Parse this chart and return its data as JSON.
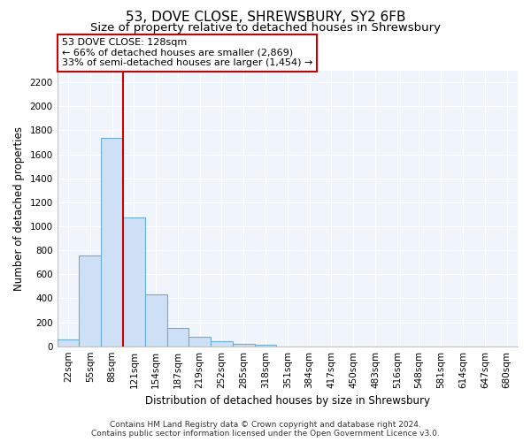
{
  "title": "53, DOVE CLOSE, SHREWSBURY, SY2 6FB",
  "subtitle": "Size of property relative to detached houses in Shrewsbury",
  "xlabel": "Distribution of detached houses by size in Shrewsbury",
  "ylabel": "Number of detached properties",
  "bar_labels": [
    "22sqm",
    "55sqm",
    "88sqm",
    "121sqm",
    "154sqm",
    "187sqm",
    "219sqm",
    "252sqm",
    "285sqm",
    "318sqm",
    "351sqm",
    "384sqm",
    "417sqm",
    "450sqm",
    "483sqm",
    "516sqm",
    "548sqm",
    "581sqm",
    "614sqm",
    "647sqm",
    "680sqm"
  ],
  "bar_values": [
    57,
    760,
    1740,
    1075,
    430,
    155,
    80,
    42,
    22,
    15,
    0,
    0,
    0,
    0,
    0,
    0,
    0,
    0,
    0,
    0,
    0
  ],
  "bar_color": "#cde0f5",
  "bar_edge_color": "#6aaed6",
  "vline_color": "#cc0000",
  "vline_x": 2.5,
  "ylim": [
    0,
    2300
  ],
  "yticks": [
    0,
    200,
    400,
    600,
    800,
    1000,
    1200,
    1400,
    1600,
    1800,
    2000,
    2200
  ],
  "annotation_title": "53 DOVE CLOSE: 128sqm",
  "annotation_line1": "← 66% of detached houses are smaller (2,869)",
  "annotation_line2": "33% of semi-detached houses are larger (1,454) →",
  "annotation_box_color": "#ffffff",
  "annotation_box_edge": "#cc0000",
  "footer_line1": "Contains HM Land Registry data © Crown copyright and database right 2024.",
  "footer_line2": "Contains public sector information licensed under the Open Government Licence v3.0.",
  "title_fontsize": 11,
  "subtitle_fontsize": 9.5,
  "axis_label_fontsize": 8.5,
  "tick_fontsize": 7.5,
  "annotation_fontsize": 8,
  "footer_fontsize": 6.5
}
